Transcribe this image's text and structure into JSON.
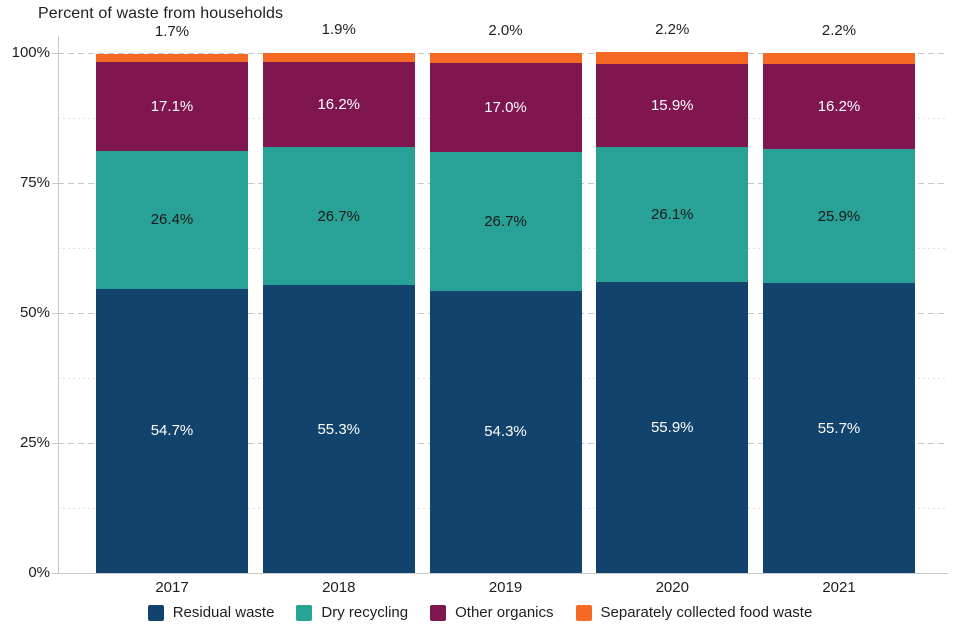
{
  "chart_data": {
    "type": "bar",
    "stacked": true,
    "orientation": "vertical",
    "title": "Percent of waste from households",
    "categories": [
      "2017",
      "2018",
      "2019",
      "2020",
      "2021"
    ],
    "series": [
      {
        "name": "Residual waste",
        "color": "#12436D",
        "label_color": "#ffffff",
        "label_position": "inside",
        "values": [
          54.7,
          55.3,
          54.3,
          55.9,
          55.7
        ]
      },
      {
        "name": "Dry recycling",
        "color": "#28A197",
        "label_color": "#1a1a1a",
        "label_position": "inside",
        "values": [
          26.4,
          26.7,
          26.7,
          26.1,
          25.9
        ]
      },
      {
        "name": "Other organics",
        "color": "#801650",
        "label_color": "#ffffff",
        "label_position": "inside",
        "values": [
          17.1,
          16.2,
          17.0,
          15.9,
          16.2
        ]
      },
      {
        "name": "Separately collected food waste",
        "color": "#F46A25",
        "label_color": "#1f1f1f",
        "label_position": "above",
        "values": [
          1.7,
          1.9,
          2.0,
          2.2,
          2.2
        ]
      }
    ],
    "value_label_format": "one_decimal_percent",
    "y_axis": {
      "ticks": [
        {
          "value": 0,
          "label": "0%"
        },
        {
          "value": 25,
          "label": "25%"
        },
        {
          "value": 50,
          "label": "50%"
        },
        {
          "value": 75,
          "label": "75%"
        },
        {
          "value": 100,
          "label": "100%"
        }
      ],
      "minor_ticks": [
        12.5,
        37.5,
        62.5,
        87.5
      ],
      "range": [
        0,
        100
      ],
      "grid_major_style": "dashed",
      "grid_minor_style": "dotted"
    },
    "legend_position": "bottom",
    "colors": {
      "grid_major": "#c7c7c7",
      "grid_minor": "#e1e1e1",
      "axis": "#c9c9c9",
      "text": "#1f1f1f",
      "background": "#ffffff"
    }
  }
}
